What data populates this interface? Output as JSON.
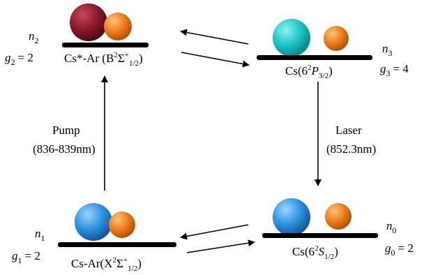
{
  "states": {
    "n2": {
      "pop_var": "n",
      "pop_sub": "2",
      "deg_var": "g",
      "deg_sub": "2",
      "deg_eq": "= 2",
      "name_prefix": "Cs*-Ar (B",
      "name_sup1": "2",
      "name_mid": "Σ",
      "name_sup2": "+",
      "name_sub": "1/2",
      "name_suffix": ")"
    },
    "n3": {
      "pop_var": "n",
      "pop_sub": "3",
      "deg_var": "g",
      "deg_sub": "3",
      "deg_eq": "= 4",
      "name_prefix": "Cs(6",
      "name_sup1": "2",
      "name_mid": "P",
      "name_sub": "3/2",
      "name_suffix": ")"
    },
    "n1": {
      "pop_var": "n",
      "pop_sub": "1",
      "deg_var": "g",
      "deg_sub": "1",
      "deg_eq": "= 2",
      "name_prefix": "Cs-Ar(X",
      "name_sup1": "2",
      "name_mid": "Σ",
      "name_sup2": "+",
      "name_sub": "1/2",
      "name_suffix": ")"
    },
    "n0": {
      "pop_var": "n",
      "pop_sub": "0",
      "deg_var": "g",
      "deg_sub": "0",
      "deg_eq": "= 2",
      "name_prefix": "Cs(6",
      "name_sup1": "2",
      "name_mid": "S",
      "name_sub": "1/2",
      "name_suffix": ")"
    }
  },
  "transitions": {
    "pump": {
      "label": "Pump",
      "wavelength": "(836-839nm)"
    },
    "laser": {
      "label": "Laser",
      "wavelength": "(852.3nm)"
    }
  },
  "colors": {
    "cs_excited": "#8e1a2a",
    "cs_blue": "#2f95e0",
    "cs_cyan": "#1fc7c9",
    "ar_orange": "#f07f1c",
    "level_line": "#000000"
  }
}
